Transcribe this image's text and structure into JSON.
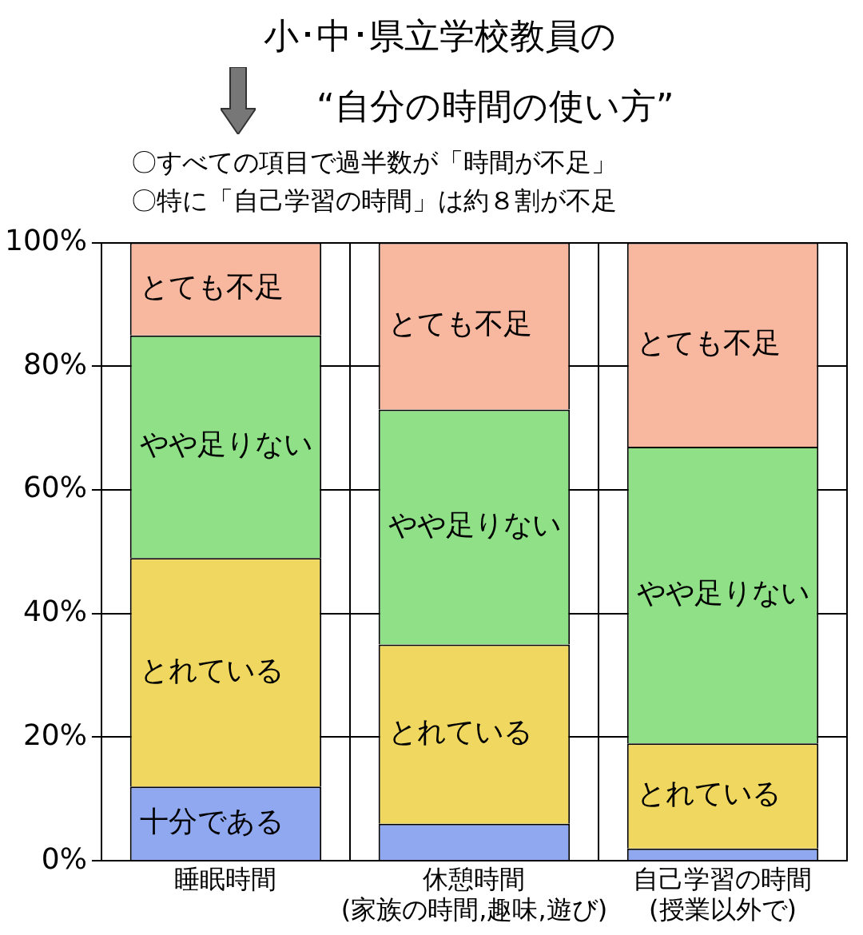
{
  "chart_data": {
    "type": "bar",
    "title": "小･中･県立学校教員の\n“自分の時間の使い方”",
    "subtitle": "〇すべての項目で過半数が「時間が不足」",
    "annotations": [
      "〇特に「自己学習の時間」は約８割が不足"
    ],
    "categories": [
      "睡眠時間",
      "休憩時間\n(家族の時間,趣味,遊び)",
      "自己学習の時間\n(授業以外で)"
    ],
    "stacked": true,
    "series": [
      {
        "name": "十分である",
        "color": "#8fa8f0",
        "values": [
          12,
          6,
          2
        ]
      },
      {
        "name": "とれている",
        "color": "#f0d860",
        "values": [
          37,
          29,
          17
        ]
      },
      {
        "name": "やや足りない",
        "color": "#90e088",
        "values": [
          36,
          38,
          48
        ]
      },
      {
        "name": "とても不足",
        "color": "#f8b8a0",
        "values": [
          15,
          27,
          33
        ]
      }
    ],
    "ylim": [
      0,
      100
    ],
    "yticks": [
      {
        "value": 0,
        "label": "0%"
      },
      {
        "value": 20,
        "label": "20%"
      },
      {
        "value": 40,
        "label": "40%"
      },
      {
        "value": 60,
        "label": "60%"
      },
      {
        "value": 80,
        "label": "80%"
      },
      {
        "value": 100,
        "label": "100%"
      }
    ],
    "grid": true,
    "legend": false
  }
}
